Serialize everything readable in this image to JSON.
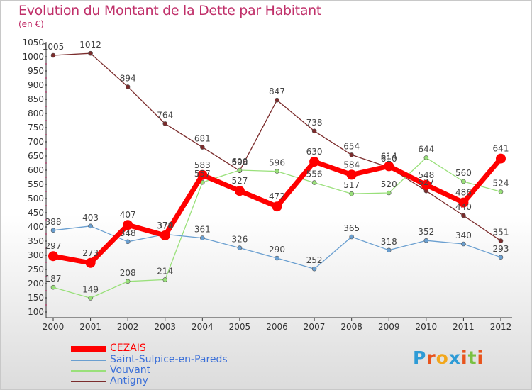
{
  "header": {
    "title": "Evolution du Montant de la Dette par Habitant",
    "unit": "(en €)"
  },
  "chart_data": {
    "type": "line",
    "x": [
      "2000",
      "2001",
      "2002",
      "2003",
      "2004",
      "2005",
      "2006",
      "2007",
      "2008",
      "2009",
      "2010",
      "2011",
      "2012"
    ],
    "ylim": [
      100,
      1050
    ],
    "yticks": [
      100,
      150,
      200,
      250,
      300,
      350,
      400,
      450,
      500,
      550,
      600,
      650,
      700,
      750,
      800,
      850,
      900,
      950,
      1000,
      1050
    ],
    "grid": false,
    "legend_position": "bottom-left",
    "series": [
      {
        "name": "Antigny",
        "color": "#7b2c2c",
        "values": [
          1005,
          1012,
          894,
          764,
          681,
          598,
          847,
          738,
          654,
          610,
          527,
          440,
          351
        ]
      },
      {
        "name": "Vouvant",
        "color": "#99e07a",
        "values": [
          187,
          149,
          208,
          214,
          557,
          600,
          596,
          556,
          517,
          520,
          644,
          560,
          524
        ]
      },
      {
        "name": "Saint-Sulpice-en-Pareds",
        "color": "#6a9fd0",
        "values": [
          388,
          403,
          348,
          374,
          361,
          326,
          290,
          252,
          365,
          318,
          352,
          340,
          293
        ]
      },
      {
        "name": "CEZAIS",
        "color": "#ff0000",
        "values": [
          297,
          273,
          407,
          370,
          583,
          527,
          472,
          630,
          584,
          614,
          548,
          486,
          641
        ]
      }
    ]
  },
  "legend": {
    "items": [
      {
        "label": "CEZAIS",
        "color": "#ff0000",
        "text_color": "#ff0000"
      },
      {
        "label": "Saint-Sulpice-en-Pareds",
        "color": "#6a9fd0",
        "text_color": "#3a6fd8"
      },
      {
        "label": "Vouvant",
        "color": "#99e07a",
        "text_color": "#3a6fd8"
      },
      {
        "label": "Antigny",
        "color": "#7b2c2c",
        "text_color": "#3a6fd8"
      }
    ]
  },
  "logo": {
    "letters": [
      "P",
      "r",
      "o",
      "x",
      "i",
      "t",
      "i"
    ],
    "colors": [
      "#2e9bd6",
      "#e8541d",
      "#f2a71c",
      "#2e9bd6",
      "#e8541d",
      "#7ac143",
      "#e8541d"
    ]
  }
}
